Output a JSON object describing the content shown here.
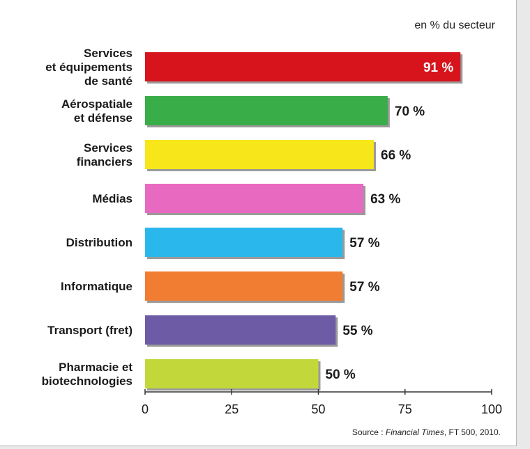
{
  "chart_data": {
    "type": "bar",
    "orientation": "horizontal",
    "unit_label": "en % du secteur",
    "categories": [
      "Services et équipements de santé",
      "Aérospatiale et défense",
      "Services financiers",
      "Médias",
      "Distribution",
      "Informatique",
      "Transport (fret)",
      "Pharmacie et biotechnologies"
    ],
    "category_lines": [
      [
        "Services",
        "et équipements",
        "de santé"
      ],
      [
        "Aérospatiale",
        "et défense"
      ],
      [
        "Services",
        "financiers"
      ],
      [
        "Médias"
      ],
      [
        "Distribution"
      ],
      [
        "Informatique"
      ],
      [
        "Transport (fret)"
      ],
      [
        "Pharmacie et",
        "biotechnologies"
      ]
    ],
    "values": [
      91,
      70,
      66,
      63,
      57,
      57,
      55,
      50
    ],
    "value_labels": [
      "91 %",
      "70 %",
      "66 %",
      "63 %",
      "57 %",
      "57 %",
      "55 %",
      "50 %"
    ],
    "colors": [
      "#d7141c",
      "#39ad48",
      "#f6e61a",
      "#e869c0",
      "#2ab8ec",
      "#f17d32",
      "#6e5ba6",
      "#c2d83a"
    ],
    "xlim": [
      0,
      100
    ],
    "xticks": [
      0,
      25,
      50,
      75,
      100
    ],
    "grid": false,
    "legend": "none"
  },
  "source": {
    "prefix": "Source : ",
    "name": "Financial Times",
    "suffix": ", FT 500, 2010."
  }
}
